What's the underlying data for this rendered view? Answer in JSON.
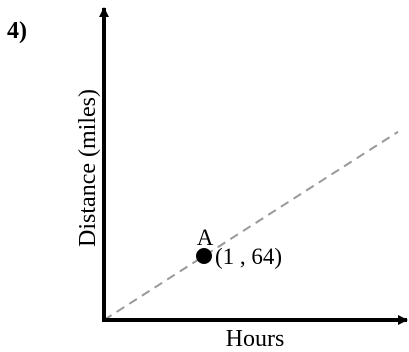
{
  "problem_number": "4)",
  "chart_data": {
    "type": "line",
    "xlabel": "Hours",
    "ylabel": "Distance (miles)",
    "line_style": "dashed",
    "line_color": "#999999",
    "axis_color": "#000000",
    "line": {
      "through_origin": true,
      "slope": 64
    },
    "points": [
      {
        "label": "A",
        "x": 1,
        "y": 64,
        "coord_text": "(1 , 64)"
      }
    ],
    "grid": false
  }
}
